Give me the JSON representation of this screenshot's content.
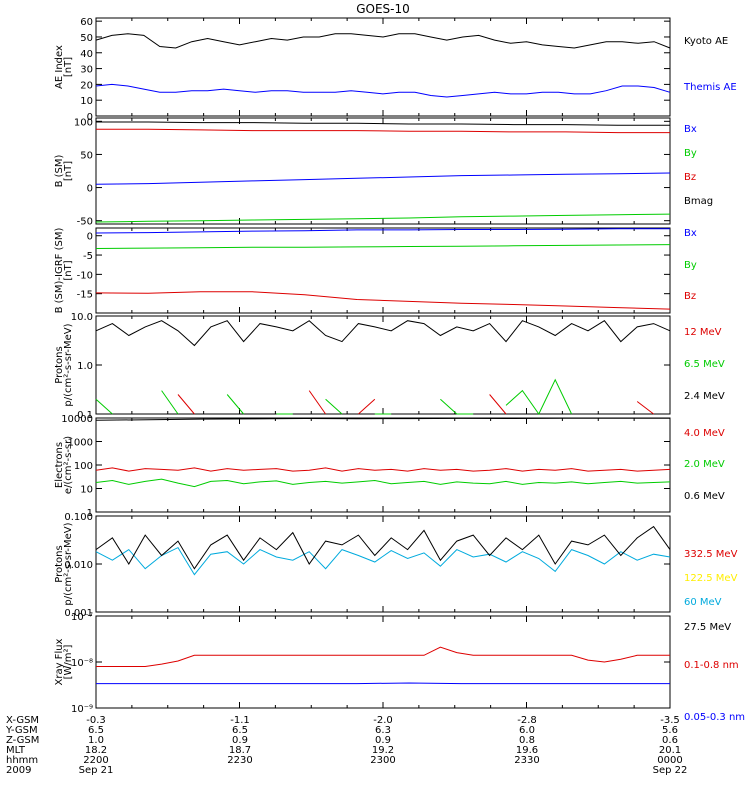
{
  "title": "GOES-10",
  "colors": {
    "black": "#000000",
    "blue": "#0000ff",
    "red": "#dd0000",
    "green": "#00cc00",
    "green2": "#00dd44",
    "yellow": "#ffee00",
    "cyan": "#00aadd"
  },
  "chart_data": [
    {
      "type": "line",
      "id": "ae",
      "ylabel": [
        "AE Index",
        "[nT]"
      ],
      "ylim": [
        0,
        62
      ],
      "yscale": "linear",
      "yticks": [
        {
          "v": 0,
          "l": "0"
        },
        {
          "v": 10,
          "l": "10"
        },
        {
          "v": 20,
          "l": "20"
        },
        {
          "v": 30,
          "l": "30"
        },
        {
          "v": 40,
          "l": "40"
        },
        {
          "v": 50,
          "l": "50"
        },
        {
          "v": 60,
          "l": "60"
        }
      ],
      "x_time_hours": [
        0,
        0.5,
        1,
        1.5,
        2
      ],
      "series": [
        {
          "name": "Kyoto AE",
          "color": "black",
          "values": [
            48,
            51,
            52,
            51,
            44,
            43,
            47,
            49,
            47,
            45,
            47,
            49,
            48,
            50,
            50,
            52,
            52,
            51,
            50,
            52,
            52,
            50,
            48,
            50,
            51,
            48,
            46,
            47,
            45,
            44,
            43,
            45,
            47,
            47,
            46,
            47,
            43
          ]
        },
        {
          "name": "Themis AE",
          "color": "blue",
          "values": [
            19,
            20,
            19,
            17,
            15,
            15,
            16,
            16,
            17,
            16,
            15,
            16,
            16,
            15,
            15,
            15,
            16,
            15,
            14,
            15,
            15,
            13,
            12,
            13,
            14,
            15,
            14,
            14,
            15,
            15,
            14,
            14,
            16,
            19,
            19,
            18,
            15
          ]
        }
      ]
    },
    {
      "type": "line",
      "id": "bsm",
      "ylabel": [
        "B (SM)",
        "[nT]"
      ],
      "ylim": [
        -55,
        105
      ],
      "yscale": "linear",
      "yticks": [
        {
          "v": -50,
          "l": "-50"
        },
        {
          "v": 0,
          "l": "0"
        },
        {
          "v": 50,
          "l": "50"
        },
        {
          "v": 100,
          "l": "100"
        }
      ],
      "series": [
        {
          "name": "Bx",
          "color": "blue",
          "values": [
            5,
            6,
            8,
            10,
            12,
            14,
            16,
            18,
            19,
            20,
            21,
            22
          ]
        },
        {
          "name": "By",
          "color": "green",
          "values": [
            -52,
            -51,
            -50,
            -49,
            -48,
            -47,
            -46,
            -44,
            -43,
            -42,
            -41,
            -40
          ]
        },
        {
          "name": "Bz",
          "color": "red",
          "values": [
            88,
            88,
            87,
            86,
            86,
            86,
            85,
            85,
            84,
            84,
            83,
            83
          ]
        },
        {
          "name": "Bmag",
          "color": "black",
          "values": [
            99,
            99,
            98,
            98,
            97,
            97,
            96,
            96,
            95,
            95,
            94,
            94
          ]
        }
      ]
    },
    {
      "type": "line",
      "id": "bdiff",
      "ylabel": [
        "B (SM)-IGRF (SM)",
        "[nT]"
      ],
      "ylim": [
        -20,
        2
      ],
      "yscale": "linear",
      "yticks": [
        {
          "v": -15,
          "l": "-15"
        },
        {
          "v": -10,
          "l": "-10"
        },
        {
          "v": -5,
          "l": "-5"
        },
        {
          "v": 0,
          "l": "0"
        }
      ],
      "series": [
        {
          "name": "Bx",
          "color": "blue",
          "values": [
            0.7,
            0.8,
            1.0,
            1.2,
            1.3,
            1.5,
            1.5,
            1.6,
            1.6,
            1.7,
            1.8,
            1.8
          ]
        },
        {
          "name": "By",
          "color": "green",
          "values": [
            -3.3,
            -3.2,
            -3.1,
            -3.0,
            -3.0,
            -2.9,
            -2.8,
            -2.7,
            -2.6,
            -2.5,
            -2.4,
            -2.3
          ]
        },
        {
          "name": "Bz",
          "color": "red",
          "values": [
            -14.8,
            -14.9,
            -14.5,
            -14.5,
            -15.3,
            -16.5,
            -17.0,
            -17.5,
            -17.8,
            -18.2,
            -18.6,
            -19.0
          ]
        }
      ]
    },
    {
      "type": "line",
      "id": "protons1",
      "ylabel": [
        "Protons",
        "p/(cm²-s-sr-MeV)"
      ],
      "ylim": [
        0.1,
        10
      ],
      "yscale": "log",
      "yticks": [
        {
          "v": 0.1,
          "l": "0.1"
        },
        {
          "v": 1,
          "l": "1.0"
        },
        {
          "v": 10,
          "l": "10.0"
        }
      ],
      "series": [
        {
          "name": "12 MeV",
          "color": "red",
          "values": [
            null,
            null,
            null,
            null,
            null,
            0.25,
            0.1,
            null,
            null,
            null,
            null,
            null,
            null,
            0.3,
            0.1,
            null,
            0.1,
            0.2,
            null,
            null,
            null,
            null,
            null,
            null,
            0.25,
            0.1,
            null,
            null,
            null,
            null,
            null,
            null,
            null,
            0.18,
            0.1,
            null
          ]
        },
        {
          "name": "6.5 MeV",
          "color": "green",
          "values": [
            0.2,
            0.1,
            null,
            null,
            0.3,
            0.1,
            null,
            null,
            0.25,
            0.1,
            null,
            0.1,
            0.1,
            null,
            0.2,
            0.1,
            null,
            0.1,
            0.1,
            null,
            null,
            0.2,
            0.1,
            0.1,
            null,
            0.15,
            0.3,
            0.1,
            0.5,
            0.1,
            null,
            null,
            null,
            null,
            null,
            null
          ]
        },
        {
          "name": "2.4 MeV",
          "color": "black",
          "values": [
            5,
            7,
            4,
            6,
            8,
            5,
            2.5,
            6,
            8,
            3,
            7,
            6,
            5,
            8,
            4,
            3,
            7,
            6,
            5,
            8,
            7,
            4,
            6,
            5,
            7,
            3,
            8,
            6,
            4,
            7,
            5,
            8,
            3,
            6,
            7,
            5
          ]
        }
      ]
    },
    {
      "type": "line",
      "id": "electrons",
      "ylabel": [
        "Electrons",
        "e/(cm²-s-sr)"
      ],
      "ylim": [
        1,
        10000
      ],
      "yscale": "log",
      "yticks": [
        {
          "v": 1,
          "l": "1"
        },
        {
          "v": 10,
          "l": "10"
        },
        {
          "v": 100,
          "l": "100"
        },
        {
          "v": 1000,
          "l": "1000"
        },
        {
          "v": 10000,
          "l": "10000"
        }
      ],
      "series": [
        {
          "name": "4.0 MeV",
          "color": "red",
          "values": [
            60,
            75,
            55,
            70,
            65,
            60,
            75,
            55,
            70,
            60,
            65,
            70,
            55,
            60,
            75,
            55,
            70,
            60,
            65,
            55,
            70,
            60,
            65,
            55,
            60,
            70,
            55,
            65,
            60,
            70,
            55,
            60,
            65,
            55,
            60,
            65
          ]
        },
        {
          "name": "2.0 MeV",
          "color": "green",
          "values": [
            18,
            22,
            15,
            20,
            25,
            17,
            12,
            20,
            22,
            16,
            19,
            21,
            15,
            18,
            20,
            17,
            19,
            22,
            16,
            18,
            20,
            15,
            19,
            17,
            16,
            20,
            15,
            18,
            17,
            19,
            16,
            18,
            20,
            17,
            18,
            19
          ]
        },
        {
          "name": "0.6 MeV",
          "color": "black",
          "values": [
            8000,
            8500,
            9000,
            9200,
            9500,
            9300,
            9400,
            9600,
            9500,
            9700,
            9800,
            9700
          ]
        }
      ]
    },
    {
      "type": "line",
      "id": "protons2",
      "ylabel": [
        "Protons",
        "p/(cm²-s-sr-MeV)"
      ],
      "ylim": [
        0.001,
        0.1
      ],
      "yscale": "log",
      "yticks": [
        {
          "v": 0.001,
          "l": "0.001"
        },
        {
          "v": 0.01,
          "l": "0.010"
        },
        {
          "v": 0.1,
          "l": "0.100"
        }
      ],
      "series": [
        {
          "name": "332.5 MeV",
          "color": "red",
          "values": []
        },
        {
          "name": "122.5 MeV",
          "color": "yellow",
          "values": []
        },
        {
          "name": "60 MeV",
          "color": "cyan",
          "values": [
            0.018,
            0.012,
            0.02,
            0.008,
            0.015,
            0.022,
            0.006,
            0.016,
            0.018,
            0.01,
            0.02,
            0.014,
            0.012,
            0.018,
            0.008,
            0.02,
            0.015,
            0.011,
            0.019,
            0.013,
            0.017,
            0.009,
            0.02,
            0.014,
            0.016,
            0.011,
            0.018,
            0.013,
            0.007,
            0.02,
            0.015,
            0.01,
            0.018,
            0.012,
            0.016,
            0.014
          ]
        },
        {
          "name": "27.5 MeV",
          "color": "black",
          "values": [
            0.02,
            0.035,
            0.01,
            0.04,
            0.015,
            0.03,
            0.008,
            0.025,
            0.04,
            0.012,
            0.035,
            0.02,
            0.045,
            0.01,
            0.03,
            0.025,
            0.04,
            0.015,
            0.035,
            0.02,
            0.05,
            0.012,
            0.03,
            0.04,
            0.015,
            0.035,
            0.02,
            0.04,
            0.01,
            0.03,
            0.025,
            0.04,
            0.015,
            0.035,
            0.06,
            0.02
          ]
        }
      ]
    },
    {
      "type": "line",
      "id": "xray",
      "ylabel": [
        "Xray  Flux",
        "[W/m²]"
      ],
      "ylim": [
        1e-09,
        1e-07
      ],
      "yscale": "log",
      "yticks": [
        {
          "v": 1e-09,
          "l": "10⁻⁹"
        },
        {
          "v": 1e-08,
          "l": "10⁻⁸"
        },
        {
          "v": 1e-07,
          "l": "10⁻⁷"
        }
      ],
      "series": [
        {
          "name": "0.1-0.8 nm",
          "color": "red",
          "values": [
            8e-09,
            8e-09,
            8e-09,
            8e-09,
            9e-09,
            1.05e-08,
            1.4e-08,
            1.4e-08,
            1.4e-08,
            1.4e-08,
            1.4e-08,
            1.4e-08,
            1.4e-08,
            1.4e-08,
            1.4e-08,
            1.4e-08,
            1.4e-08,
            1.4e-08,
            1.4e-08,
            1.4e-08,
            1.4e-08,
            2.1e-08,
            1.6e-08,
            1.4e-08,
            1.4e-08,
            1.4e-08,
            1.4e-08,
            1.4e-08,
            1.4e-08,
            1.4e-08,
            1.1e-08,
            1e-08,
            1.15e-08,
            1.4e-08,
            1.4e-08,
            1.4e-08
          ]
        },
        {
          "name": "0.05-0.3 nm",
          "color": "blue",
          "values": [
            3.4e-09,
            3.4e-09,
            3.4e-09,
            3.4e-09,
            3.4e-09,
            3.4e-09,
            3.5e-09,
            3.4e-09,
            3.4e-09,
            3.4e-09,
            3.4e-09,
            3.4e-09
          ]
        }
      ]
    }
  ],
  "xaxis": {
    "row_labels": [
      "X-GSM",
      "Y-GSM",
      "Z-GSM",
      "MLT",
      "hhmm",
      "2009"
    ],
    "columns": [
      {
        "values": [
          "-0.3",
          "6.5",
          "1.0",
          "18.2",
          "2200",
          "Sep 21"
        ]
      },
      {
        "values": [
          "-1.1",
          "6.5",
          "0.9",
          "18.7",
          "2230",
          ""
        ]
      },
      {
        "values": [
          "-2.0",
          "6.3",
          "0.9",
          "19.2",
          "2300",
          ""
        ]
      },
      {
        "values": [
          "-2.8",
          "6.0",
          "0.8",
          "19.6",
          "2330",
          ""
        ]
      },
      {
        "values": [
          "-3.5",
          "5.6",
          "0.6",
          "20.1",
          "0000",
          "Sep 22"
        ]
      }
    ]
  }
}
